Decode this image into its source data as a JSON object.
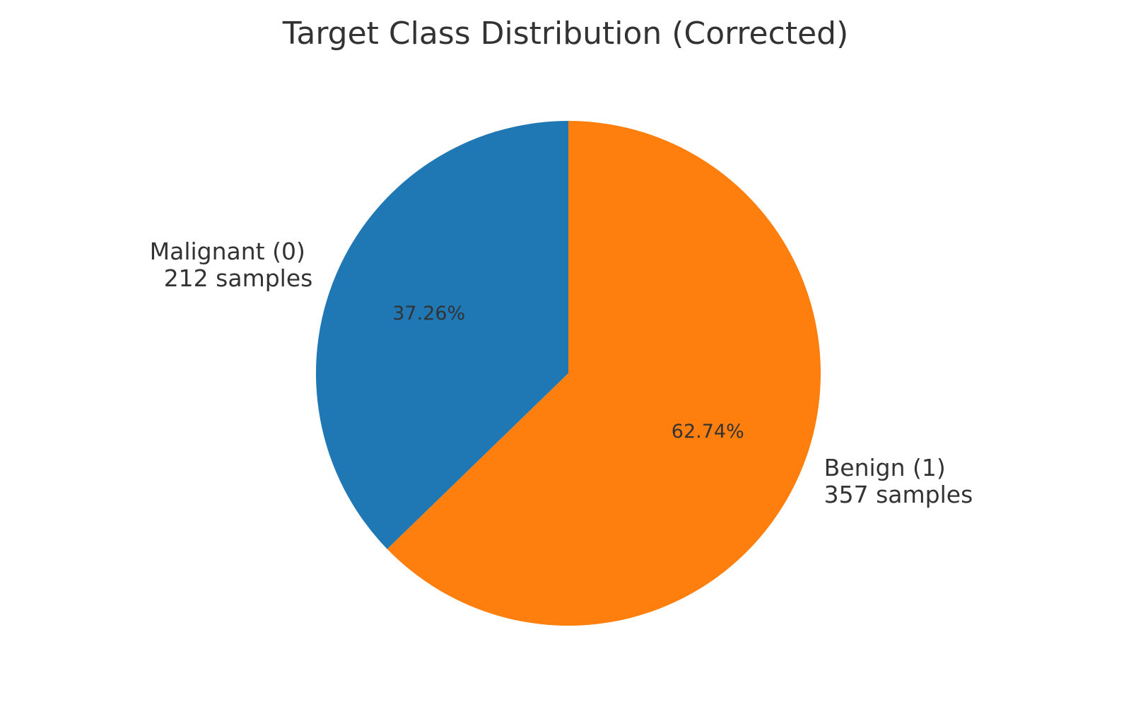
{
  "chart_data": {
    "type": "pie",
    "title": "Target Class Distribution (Corrected)",
    "slices": [
      {
        "label_line1": "Malignant (0)",
        "label_line2": "212 samples",
        "value": 212,
        "percent_label": "37.26%",
        "color": "#1f77b4"
      },
      {
        "label_line1": "Benign (1)",
        "label_line2": "357 samples",
        "value": 357,
        "percent_label": "62.74%",
        "color": "#ff7f0e"
      }
    ]
  }
}
